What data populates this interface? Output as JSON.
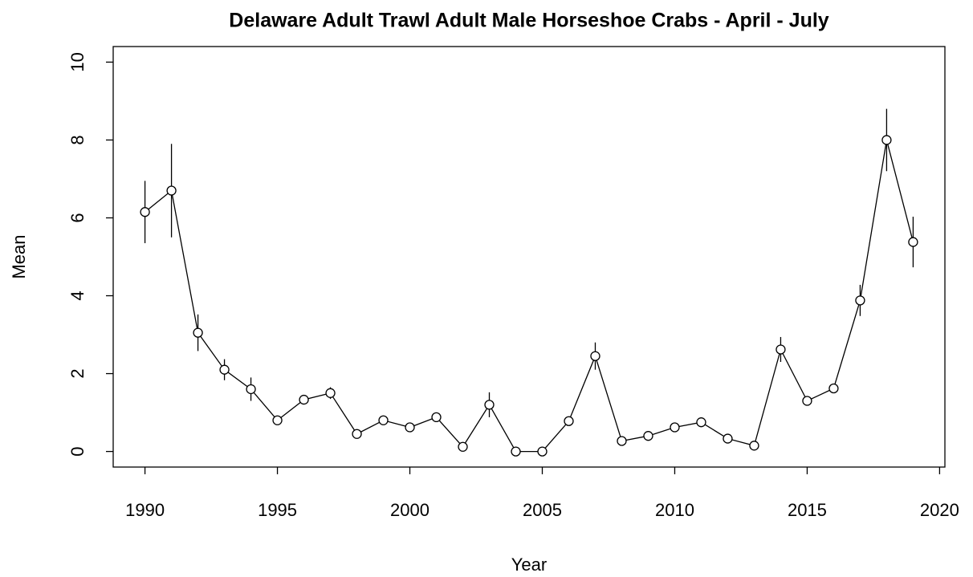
{
  "chart_data": {
    "type": "line",
    "title": "Delaware Adult Trawl Adult Male Horseshoe Crabs - April - July",
    "xlabel": "Year",
    "ylabel": "Mean",
    "x": [
      1990,
      1991,
      1992,
      1993,
      1994,
      1995,
      1996,
      1997,
      1998,
      1999,
      2000,
      2001,
      2002,
      2003,
      2004,
      2005,
      2006,
      2007,
      2008,
      2009,
      2010,
      2011,
      2012,
      2013,
      2014,
      2015,
      2016,
      2017,
      2018,
      2019
    ],
    "values": [
      6.15,
      6.7,
      3.05,
      2.1,
      1.6,
      0.8,
      1.33,
      1.5,
      0.45,
      0.8,
      0.62,
      0.88,
      0.12,
      1.2,
      0.0,
      0.0,
      0.78,
      2.45,
      0.27,
      0.4,
      0.62,
      0.75,
      0.33,
      0.15,
      2.62,
      1.3,
      1.62,
      3.88,
      8.0,
      5.38
    ],
    "errors": [
      0.8,
      1.2,
      0.47,
      0.27,
      0.3,
      0.1,
      0.1,
      0.15,
      0.1,
      0.12,
      0.1,
      0.08,
      0.05,
      0.32,
      0.03,
      0.03,
      0.1,
      0.35,
      0.05,
      0.05,
      0.06,
      0.06,
      0.05,
      0.04,
      0.32,
      0.1,
      0.12,
      0.4,
      0.8,
      0.65
    ],
    "color": "#000000",
    "xlim": [
      1988.8,
      2020.2
    ],
    "xticks": [
      1990,
      1995,
      2000,
      2005,
      2010,
      2015,
      2020
    ],
    "ylim": [
      -0.4,
      10.4
    ],
    "yticks": [
      0,
      2,
      4,
      6,
      8,
      10
    ]
  }
}
